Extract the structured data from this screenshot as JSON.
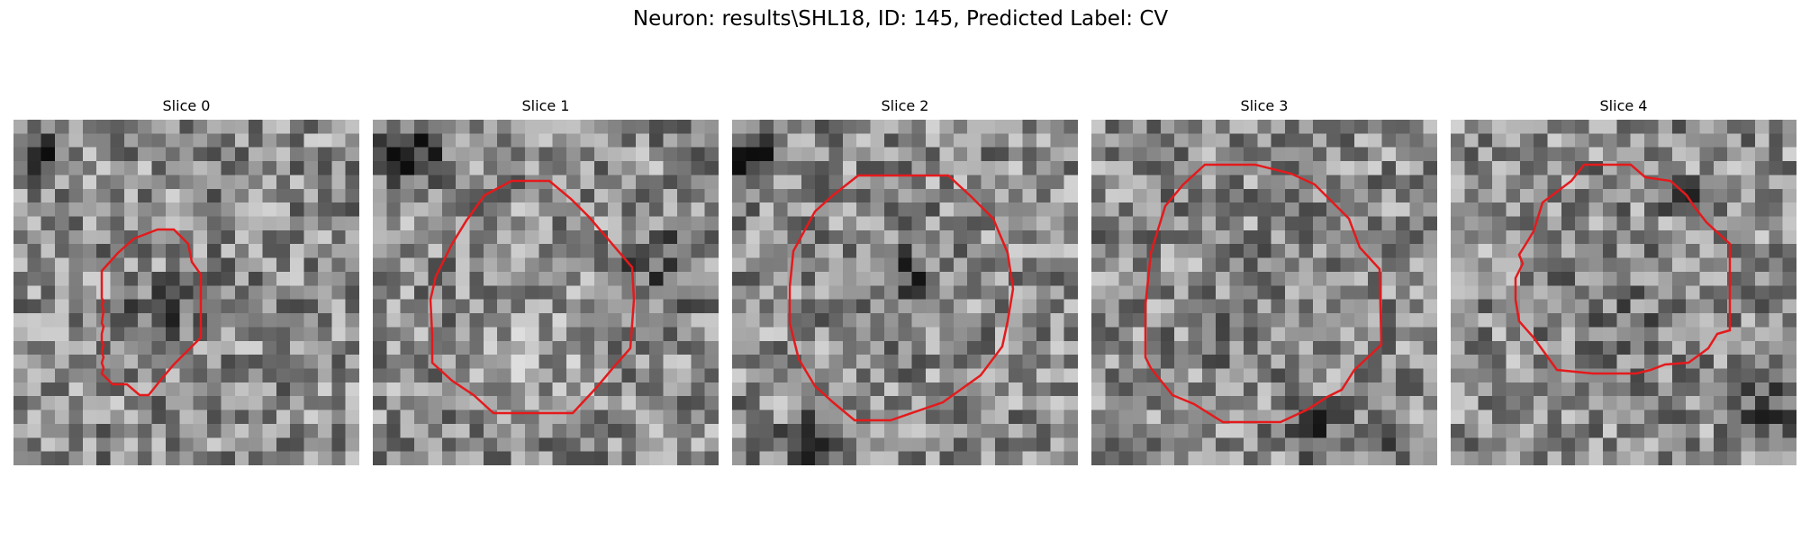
{
  "figure": {
    "title": "Neuron: results\\SHL18, ID: 145, Predicted Label: CV"
  },
  "panels": [
    {
      "title": "Slice 0",
      "contour": "red"
    },
    {
      "title": "Slice 1",
      "contour": "red"
    },
    {
      "title": "Slice 2",
      "contour": "red"
    },
    {
      "title": "Slice 3",
      "contour": "red"
    },
    {
      "title": "Slice 4",
      "contour": "red"
    }
  ],
  "colors": {
    "background": "#ffffff",
    "contour": "#e41a1c",
    "colormap": "grayscale"
  }
}
